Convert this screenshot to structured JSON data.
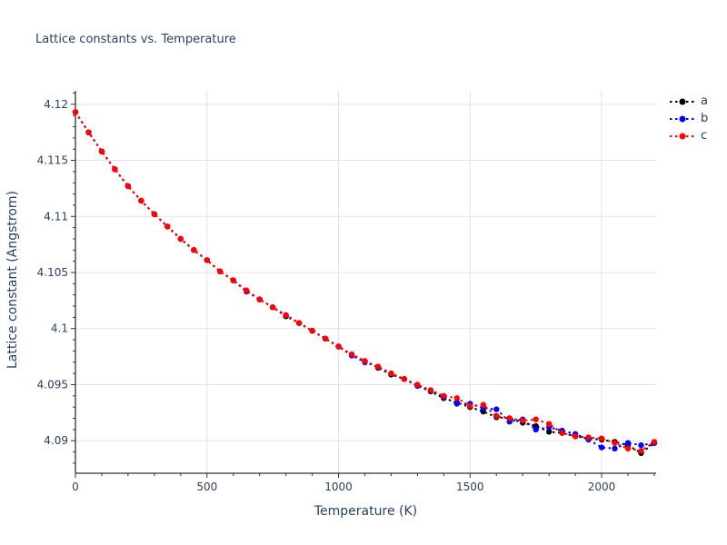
{
  "title": "Lattice constants vs. Temperature",
  "colors": {
    "text": "#2a3f5f",
    "grid": "#e3e3e3",
    "axis": "#333333",
    "background": "#ffffff",
    "series_a": "#000000",
    "series_b": "#0000ff",
    "series_c": "#ff0000"
  },
  "legend": {
    "items": [
      {
        "label": "a",
        "color": "#000000"
      },
      {
        "label": "b",
        "color": "#0000ff"
      },
      {
        "label": "c",
        "color": "#ff0000"
      }
    ]
  },
  "chart_data": {
    "type": "line",
    "title": "Lattice constants vs. Temperature",
    "xlabel": "Temperature (K)",
    "ylabel": "Lattice constant (Angstrom)",
    "xlim": [
      0,
      2207
    ],
    "ylim": [
      4.0871,
      4.1212
    ],
    "grid": true,
    "legend_position": "top-right",
    "line_style": "dot",
    "marker": "circle",
    "x_major_ticks": [
      0,
      500,
      1000,
      1500,
      2000
    ],
    "x_tick_labels": [
      "0",
      "500",
      "1000",
      "1500",
      "2000"
    ],
    "x_minor_step": 100,
    "y_major_ticks": [
      4.09,
      4.095,
      4.1,
      4.105,
      4.11,
      4.115,
      4.12
    ],
    "y_tick_labels": [
      "4.09",
      "4.095",
      "4.1",
      "4.105",
      "4.11",
      "4.115",
      "4.12"
    ],
    "y_minor_step": 0.001,
    "x": [
      0,
      50,
      100,
      150,
      200,
      250,
      300,
      350,
      400,
      450,
      500,
      550,
      600,
      650,
      700,
      750,
      800,
      850,
      900,
      950,
      1000,
      1050,
      1100,
      1150,
      1200,
      1250,
      1300,
      1350,
      1400,
      1450,
      1500,
      1550,
      1600,
      1650,
      1700,
      1750,
      1800,
      1850,
      1900,
      1950,
      2000,
      2050,
      2100,
      2150,
      2200
    ],
    "series": [
      {
        "name": "a",
        "color": "#000000",
        "values": [
          4.1193,
          4.1175,
          4.1158,
          4.1142,
          4.1127,
          4.1114,
          4.1102,
          4.1091,
          4.108,
          4.107,
          4.1061,
          4.1051,
          4.1043,
          4.1034,
          4.1026,
          4.1019,
          4.1011,
          4.1005,
          4.0998,
          4.0991,
          4.0984,
          4.0977,
          4.0971,
          4.0965,
          4.0959,
          4.0955,
          4.0949,
          4.0944,
          4.0938,
          4.0934,
          4.093,
          4.0926,
          4.0921,
          4.092,
          4.0916,
          4.0913,
          4.0908,
          4.0907,
          4.0904,
          4.0902,
          4.0901,
          4.0899,
          4.0896,
          4.0889,
          4.0898
        ]
      },
      {
        "name": "b",
        "color": "#0000ff",
        "values": [
          4.1193,
          4.1175,
          4.1158,
          4.1142,
          4.1127,
          4.1114,
          4.1102,
          4.1091,
          4.108,
          4.107,
          4.1061,
          4.1051,
          4.1043,
          4.1033,
          4.1026,
          4.1019,
          4.1012,
          4.1005,
          4.0998,
          4.0991,
          4.0984,
          4.0976,
          4.097,
          4.0966,
          4.096,
          4.0955,
          4.0949,
          4.0945,
          4.0939,
          4.0933,
          4.0933,
          4.0929,
          4.0928,
          4.0917,
          4.0919,
          4.091,
          4.0912,
          4.0909,
          4.0906,
          4.0901,
          4.0894,
          4.0893,
          4.0898,
          4.0896,
          4.0898
        ]
      },
      {
        "name": "c",
        "color": "#ff0000",
        "values": [
          4.1193,
          4.1175,
          4.1158,
          4.1142,
          4.1127,
          4.1114,
          4.1102,
          4.1091,
          4.108,
          4.107,
          4.1061,
          4.1051,
          4.1043,
          4.1034,
          4.1026,
          4.1019,
          4.1012,
          4.1005,
          4.0998,
          4.0991,
          4.0984,
          4.0977,
          4.0971,
          4.0966,
          4.096,
          4.0955,
          4.095,
          4.0945,
          4.094,
          4.0938,
          4.0931,
          4.0932,
          4.0922,
          4.092,
          4.0918,
          4.0919,
          4.0915,
          4.0907,
          4.0904,
          4.0903,
          4.0902,
          4.0898,
          4.0893,
          4.0891,
          4.0899
        ]
      }
    ]
  }
}
